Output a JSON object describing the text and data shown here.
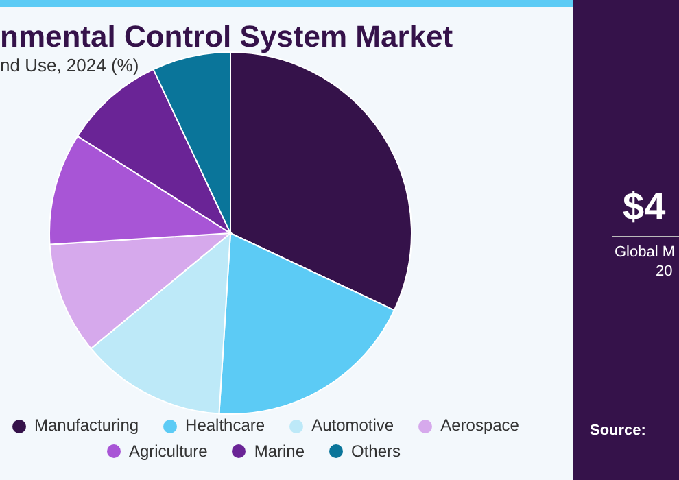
{
  "chart_data": {
    "type": "pie",
    "title": "nmental Control System Market",
    "subtitle": "nd Use, 2024 (%)",
    "categories": [
      "Manufacturing",
      "Healthcare",
      "Automotive",
      "Aerospace",
      "Agriculture",
      "Marine",
      "Others"
    ],
    "values": [
      32,
      19,
      13,
      10,
      10,
      9,
      7
    ],
    "colors": [
      "#35124a",
      "#5ccbf5",
      "#bde9f8",
      "#d6a9ec",
      "#a855d6",
      "#6a2496",
      "#0a759a"
    ],
    "legend": "bottom",
    "annotations": [
      "$4",
      "Global M",
      "20",
      "Source:"
    ]
  }
}
